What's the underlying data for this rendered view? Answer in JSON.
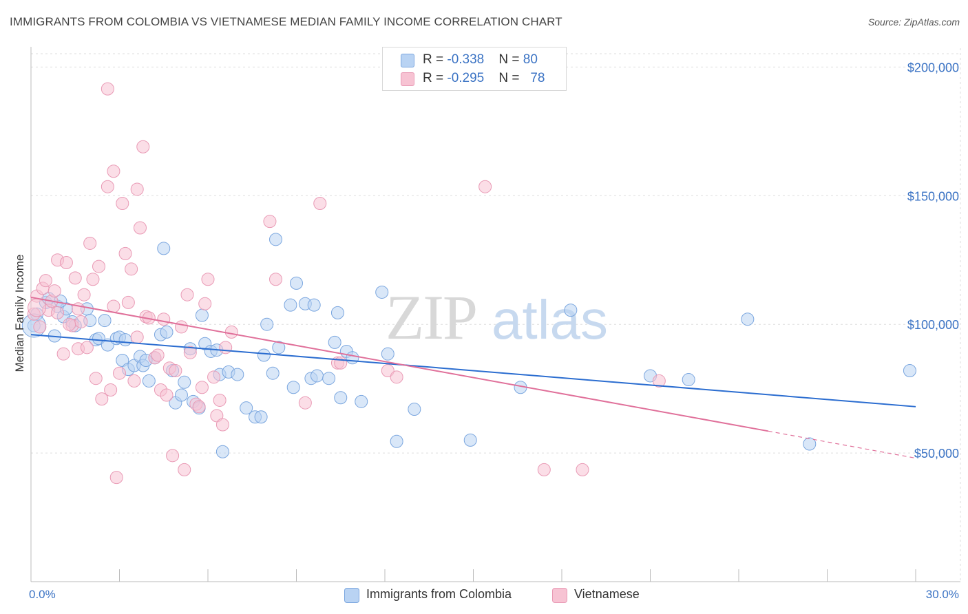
{
  "title": "IMMIGRANTS FROM COLOMBIA VS VIETNAMESE MEDIAN FAMILY INCOME CORRELATION CHART",
  "source": "Source: ZipAtlas.com",
  "watermark": {
    "zip": "ZIP",
    "atlas": "atlas"
  },
  "colors": {
    "blue": "#3b73c4",
    "blue_fill": "#b9d3f3",
    "blue_line": "#2b6dd0",
    "pink_fill": "#f7c3d3",
    "pink_line": "#e0709a"
  },
  "legend": {
    "rows": [
      {
        "r_label": "R = ",
        "r_value": "-0.338",
        "n_label": "N = ",
        "n_value": "80"
      },
      {
        "r_label": "R = ",
        "r_value": "-0.295",
        "n_label": "N = ",
        "n_value": "78"
      }
    ]
  },
  "bottom_legend": [
    "Immigrants from Colombia",
    "Vietnamese"
  ],
  "chart_data": {
    "type": "scatter",
    "title": "IMMIGRANTS FROM COLOMBIA VS VIETNAMESE MEDIAN FAMILY INCOME CORRELATION CHART",
    "xlabel": "",
    "ylabel": "Median Family Income",
    "xlim": [
      0,
      30
    ],
    "ylim": [
      0,
      210000
    ],
    "x_tick_labels": [
      "0.0%",
      "30.0%"
    ],
    "y_ticks": [
      50000,
      100000,
      150000,
      200000
    ],
    "y_tick_labels": [
      "$50,000",
      "$100,000",
      "$150,000",
      "$200,000"
    ],
    "grid": true,
    "legend_position": "top-center",
    "series": [
      {
        "name": "Immigrants from Colombia",
        "color": "#b9d3f3",
        "trend": {
          "x0": 0,
          "y0": 96000,
          "x1": 30,
          "y1": 68000
        },
        "points": [
          [
            0.1,
            99500
          ],
          [
            0.5,
            108500
          ],
          [
            0.6,
            110000
          ],
          [
            0.8,
            95500
          ],
          [
            0.9,
            107000
          ],
          [
            1.1,
            103000
          ],
          [
            1.2,
            106000
          ],
          [
            1.4,
            101000
          ],
          [
            1.5,
            99500
          ],
          [
            1.9,
            106000
          ],
          [
            2.0,
            101500
          ],
          [
            2.2,
            94000
          ],
          [
            2.3,
            94500
          ],
          [
            2.5,
            101500
          ],
          [
            2.6,
            92000
          ],
          [
            2.9,
            94500
          ],
          [
            3.0,
            95000
          ],
          [
            3.1,
            86000
          ],
          [
            3.2,
            94000
          ],
          [
            3.3,
            82500
          ],
          [
            3.5,
            84000
          ],
          [
            3.7,
            87500
          ],
          [
            3.8,
            84000
          ],
          [
            4.0,
            78000
          ],
          [
            4.2,
            87000
          ],
          [
            4.4,
            96000
          ],
          [
            4.5,
            129500
          ],
          [
            4.6,
            97000
          ],
          [
            4.8,
            82000
          ],
          [
            4.9,
            69500
          ],
          [
            5.1,
            72500
          ],
          [
            5.2,
            77500
          ],
          [
            5.4,
            90500
          ],
          [
            5.5,
            70000
          ],
          [
            5.7,
            67500
          ],
          [
            5.8,
            103500
          ],
          [
            5.9,
            92500
          ],
          [
            6.1,
            89500
          ],
          [
            6.3,
            90000
          ],
          [
            6.4,
            80500
          ],
          [
            6.5,
            50500
          ],
          [
            6.7,
            81500
          ],
          [
            7.0,
            80500
          ],
          [
            7.3,
            67500
          ],
          [
            7.6,
            64000
          ],
          [
            7.8,
            64000
          ],
          [
            7.9,
            88000
          ],
          [
            8.0,
            100000
          ],
          [
            8.2,
            81000
          ],
          [
            8.3,
            133000
          ],
          [
            8.4,
            91000
          ],
          [
            8.8,
            107500
          ],
          [
            8.9,
            75500
          ],
          [
            9.0,
            116000
          ],
          [
            9.3,
            108000
          ],
          [
            9.5,
            79000
          ],
          [
            9.6,
            107500
          ],
          [
            9.7,
            80000
          ],
          [
            10.1,
            79000
          ],
          [
            10.3,
            93000
          ],
          [
            10.4,
            104500
          ],
          [
            10.5,
            71500
          ],
          [
            10.7,
            89500
          ],
          [
            10.9,
            87000
          ],
          [
            11.2,
            70000
          ],
          [
            11.9,
            112500
          ],
          [
            12.1,
            88500
          ],
          [
            12.4,
            54500
          ],
          [
            13.0,
            67000
          ],
          [
            14.9,
            55000
          ],
          [
            16.6,
            75500
          ],
          [
            18.3,
            105500
          ],
          [
            21.0,
            80000
          ],
          [
            22.3,
            78500
          ],
          [
            24.3,
            102000
          ],
          [
            26.4,
            53500
          ],
          [
            29.8,
            82000
          ],
          [
            0.2,
            104000
          ],
          [
            1.0,
            109000
          ],
          [
            3.9,
            86000
          ]
        ]
      },
      {
        "name": "Vietnamese",
        "color": "#f7c3d3",
        "trend": {
          "x0": 0,
          "y0": 110500,
          "x1": 25.0,
          "y1": 58500,
          "dash_to_x": 30,
          "dash_to_y": 48000
        },
        "points": [
          [
            0.1,
            104000
          ],
          [
            0.2,
            111000
          ],
          [
            0.4,
            114000
          ],
          [
            0.5,
            117000
          ],
          [
            0.6,
            105500
          ],
          [
            0.7,
            109000
          ],
          [
            0.8,
            113000
          ],
          [
            0.9,
            104500
          ],
          [
            0.9,
            125000
          ],
          [
            1.1,
            88500
          ],
          [
            1.2,
            124000
          ],
          [
            1.4,
            99500
          ],
          [
            1.5,
            118000
          ],
          [
            1.6,
            90500
          ],
          [
            1.7,
            101000
          ],
          [
            1.8,
            111500
          ],
          [
            1.9,
            91000
          ],
          [
            2.0,
            131500
          ],
          [
            2.1,
            117500
          ],
          [
            2.2,
            79000
          ],
          [
            2.3,
            122500
          ],
          [
            2.4,
            71000
          ],
          [
            2.6,
            153500
          ],
          [
            2.6,
            191500
          ],
          [
            2.7,
            74500
          ],
          [
            2.8,
            159500
          ],
          [
            2.9,
            40500
          ],
          [
            3.0,
            81000
          ],
          [
            3.1,
            147000
          ],
          [
            3.2,
            127500
          ],
          [
            3.3,
            108500
          ],
          [
            3.4,
            121500
          ],
          [
            3.5,
            78000
          ],
          [
            3.6,
            152500
          ],
          [
            3.7,
            137500
          ],
          [
            3.8,
            169000
          ],
          [
            3.9,
            103000
          ],
          [
            4.0,
            102500
          ],
          [
            4.2,
            87000
          ],
          [
            4.3,
            88000
          ],
          [
            4.4,
            74500
          ],
          [
            4.5,
            102000
          ],
          [
            4.6,
            72500
          ],
          [
            4.7,
            83000
          ],
          [
            4.8,
            49000
          ],
          [
            4.9,
            82000
          ],
          [
            5.1,
            99000
          ],
          [
            5.2,
            43500
          ],
          [
            5.3,
            111500
          ],
          [
            5.4,
            89000
          ],
          [
            5.6,
            69000
          ],
          [
            5.7,
            68000
          ],
          [
            5.8,
            75500
          ],
          [
            5.9,
            108000
          ],
          [
            6.0,
            117500
          ],
          [
            6.2,
            79500
          ],
          [
            6.3,
            64500
          ],
          [
            6.4,
            70500
          ],
          [
            6.5,
            61000
          ],
          [
            6.6,
            91000
          ],
          [
            6.8,
            97000
          ],
          [
            8.1,
            140000
          ],
          [
            8.3,
            117500
          ],
          [
            9.3,
            69500
          ],
          [
            9.8,
            147000
          ],
          [
            10.4,
            85000
          ],
          [
            10.5,
            85000
          ],
          [
            12.1,
            82000
          ],
          [
            12.4,
            79500
          ],
          [
            15.4,
            153500
          ],
          [
            17.4,
            43500
          ],
          [
            18.7,
            43500
          ],
          [
            21.3,
            78000
          ],
          [
            1.3,
            100000
          ],
          [
            2.8,
            107000
          ],
          [
            0.3,
            99000
          ],
          [
            1.6,
            106000
          ],
          [
            3.6,
            95000
          ]
        ]
      }
    ]
  }
}
